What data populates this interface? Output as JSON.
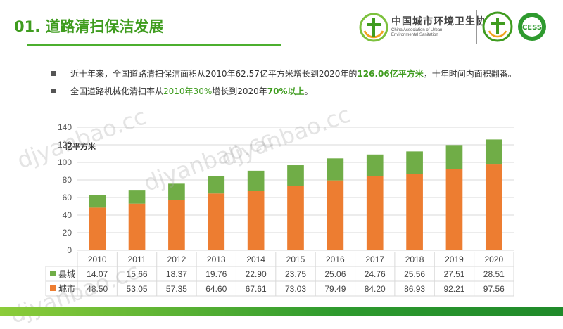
{
  "header": {
    "title": "01. 道路清扫保洁发展",
    "logo_cn": "中国城市环境卫生协会",
    "logo_en_1": "China Association of Urban",
    "logo_en_2": "Environmental Sanitation",
    "logo_badge_1": "环境卫生",
    "logo_badge_2": "CESS"
  },
  "bullets": [
    {
      "pre": "近十年来，全国道路清扫保洁面积从2010年62.57亿平方米增长到2020年的",
      "hl": "126.06亿平方米",
      "post": "，十年时间内面积翻番。"
    },
    {
      "pre": "全国道路机械化清扫率从",
      "hl": "2010年30%",
      "mid": "增长到2020年",
      "hl2": "70%以上",
      "post": "。"
    }
  ],
  "watermarks": [
    "djyanbao.cc",
    "djyanbao.cc",
    "djyanbao.cc",
    "djyanbao.cc"
  ],
  "colors": {
    "county": "#70ad47",
    "city": "#ed7d31",
    "accent": "#3f9c1f"
  },
  "chart_data": {
    "type": "bar",
    "stacked": true,
    "unit_label": "亿平方米",
    "categories": [
      "2010",
      "2011",
      "2012",
      "2013",
      "2014",
      "2015",
      "2016",
      "2017",
      "2018",
      "2019",
      "2020"
    ],
    "series": [
      {
        "name": "城市",
        "color": "#ed7d31",
        "values": [
          48.5,
          53.05,
          57.35,
          64.6,
          67.61,
          73.03,
          79.49,
          84.2,
          86.93,
          92.21,
          97.56
        ],
        "labels": [
          "48.50",
          "53.05",
          "57.35",
          "64.60",
          "67.61",
          "73.03",
          "79.49",
          "84.20",
          "86.93",
          "92.21",
          "97.56"
        ]
      },
      {
        "name": "县城",
        "color": "#70ad47",
        "values": [
          14.07,
          15.66,
          18.37,
          19.76,
          22.9,
          23.75,
          25.06,
          24.76,
          25.56,
          27.51,
          28.51
        ],
        "labels": [
          "14.07",
          "15.66",
          "18.37",
          "19.76",
          "22.90",
          "23.75",
          "25.06",
          "24.76",
          "25.56",
          "27.51",
          "28.51"
        ]
      }
    ],
    "ylim": [
      0,
      140
    ],
    "yticks": [
      "0",
      "20",
      "40",
      "60",
      "80",
      "100",
      "120",
      "140"
    ],
    "grid": true,
    "data_table": true
  }
}
